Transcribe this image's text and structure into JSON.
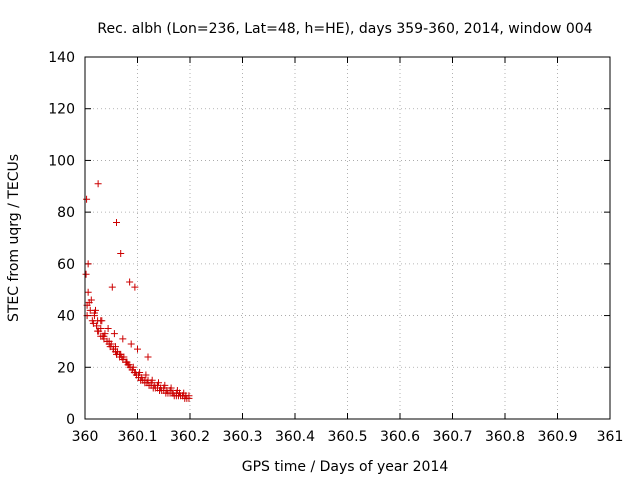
{
  "chart_data": {
    "type": "scatter",
    "title": "Rec. albh (Lon=236, Lat=48, h=HE), days 359-360, 2014, window 004",
    "xlabel": "GPS time / Days of year 2014",
    "ylabel": "STEC from uqrg / TECUs",
    "xlim": [
      360,
      361
    ],
    "ylim": [
      0,
      140
    ],
    "x_ticks": [
      360,
      360.1,
      360.2,
      360.3,
      360.4,
      360.5,
      360.6,
      360.7,
      360.8,
      360.9,
      361
    ],
    "x_tick_labels": [
      "360",
      "360.1",
      "360.2",
      "360.3",
      "360.4",
      "360.5",
      "360.6",
      "360.7",
      "360.8",
      "360.9",
      "361"
    ],
    "y_ticks": [
      0,
      20,
      40,
      60,
      80,
      100,
      120,
      140
    ],
    "y_tick_labels": [
      "0",
      "20",
      "40",
      "60",
      "80",
      "100",
      "120",
      "140"
    ],
    "grid": true,
    "legend": "none",
    "marker": "plus",
    "color": "#cc0000",
    "series": [
      {
        "x": [
          360.002,
          360.004,
          360.006,
          360.01,
          360.014,
          360.018,
          360.022,
          360.026,
          360.03,
          360.034,
          360.038,
          360.042,
          360.046,
          360.05,
          360.054,
          360.058,
          360.062,
          360.066,
          360.07,
          360.074,
          360.078,
          360.082,
          360.086,
          360.09,
          360.094,
          360.098,
          360.102,
          360.106,
          360.11,
          360.114,
          360.118,
          360.122,
          360.126,
          360.13,
          360.134,
          360.138,
          360.142,
          360.146,
          360.15,
          360.154,
          360.158,
          360.162,
          360.166,
          360.17,
          360.174,
          360.178,
          360.182,
          360.186,
          360.19,
          360.194,
          360.198,
          360.006,
          360.012,
          360.018,
          360.024,
          360.03,
          360.036,
          360.042,
          360.048,
          360.054,
          360.06,
          360.066,
          360.072,
          360.078,
          360.084,
          360.09,
          360.096,
          360.102,
          360.108,
          360.114,
          360.12,
          360.126,
          360.132,
          360.138,
          360.144,
          360.15,
          360.156,
          360.162,
          360.168,
          360.174,
          360.18,
          360.186,
          360.192,
          360.198,
          360.004,
          360.016,
          360.024,
          360.036,
          360.046,
          360.058,
          360.068,
          360.08,
          360.092,
          360.104,
          360.116,
          360.128,
          360.14,
          360.152,
          360.164,
          360.176,
          360.188,
          360.008,
          360.02,
          360.032,
          360.044,
          360.056,
          360.072,
          360.088,
          360.1,
          360.12,
          360.03,
          360.052,
          360.06,
          360.068,
          360.085,
          360.095,
          360.003,
          360.025
        ],
        "y": [
          56,
          44,
          60,
          42,
          38,
          40,
          36,
          34,
          32,
          32,
          33,
          30,
          30,
          29,
          27,
          28,
          26,
          25,
          24,
          24,
          22,
          21,
          20,
          19,
          18,
          17,
          16,
          15,
          15,
          14,
          14,
          13,
          13,
          12,
          12,
          12,
          11,
          11,
          11,
          10,
          10,
          10,
          10,
          9,
          9,
          9,
          9,
          9,
          8,
          8,
          8,
          49,
          46,
          41,
          38,
          35,
          32,
          30,
          28,
          27,
          25,
          24,
          23,
          22,
          21,
          19,
          18,
          17,
          16,
          15,
          15,
          14,
          13,
          13,
          12,
          12,
          11,
          11,
          10,
          10,
          10,
          9,
          9,
          9,
          40,
          37,
          34,
          31,
          29,
          26,
          25,
          22,
          20,
          18,
          17,
          15,
          14,
          13,
          12,
          11,
          10,
          45,
          42,
          38,
          35,
          33,
          31,
          29,
          27,
          24,
          38,
          51,
          76,
          64,
          53,
          51,
          85,
          91
        ],
        "name": ""
      }
    ]
  }
}
